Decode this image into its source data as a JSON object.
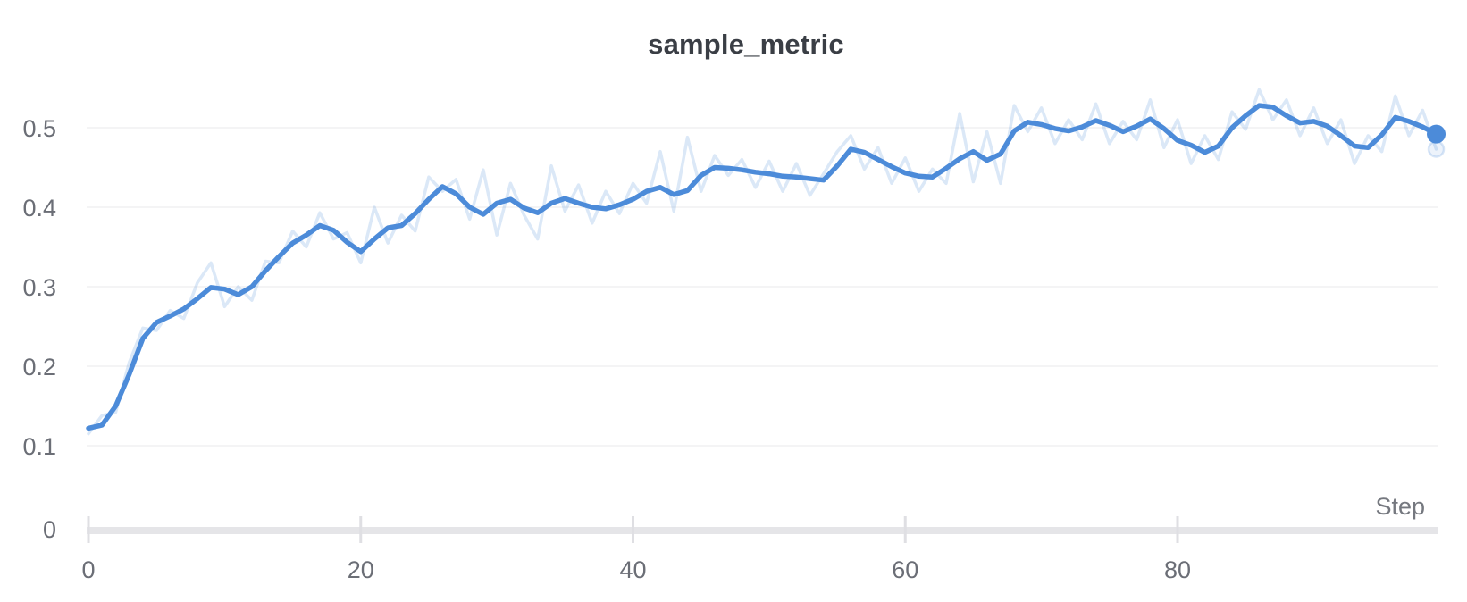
{
  "chart_data": {
    "type": "line",
    "title": "sample_metric",
    "xlabel": "Step",
    "ylabel": "",
    "x_start": 0,
    "x_step": 1,
    "xlim": [
      0,
      99
    ],
    "ylim": [
      0,
      0.55
    ],
    "x_ticks": [
      0,
      20,
      40,
      60,
      80
    ],
    "x_tick_labels": [
      "0",
      "20",
      "40",
      "60",
      "80"
    ],
    "y_ticks": [
      0,
      0.1,
      0.2,
      0.3,
      0.4,
      0.5
    ],
    "y_tick_labels": [
      "0",
      "0.1",
      "0.2",
      "0.3",
      "0.4",
      "0.5"
    ],
    "grid": "horizontal",
    "legend": "none",
    "series": [
      {
        "name": "sample_metric (original)",
        "role": "raw",
        "values": [
          0.115,
          0.138,
          0.142,
          0.205,
          0.248,
          0.245,
          0.27,
          0.26,
          0.305,
          0.33,
          0.275,
          0.3,
          0.283,
          0.332,
          0.33,
          0.37,
          0.35,
          0.393,
          0.36,
          0.368,
          0.33,
          0.4,
          0.355,
          0.39,
          0.37,
          0.438,
          0.42,
          0.435,
          0.385,
          0.447,
          0.365,
          0.43,
          0.39,
          0.36,
          0.452,
          0.395,
          0.428,
          0.38,
          0.42,
          0.392,
          0.43,
          0.405,
          0.47,
          0.395,
          0.488,
          0.42,
          0.465,
          0.44,
          0.46,
          0.425,
          0.458,
          0.42,
          0.455,
          0.415,
          0.442,
          0.47,
          0.49,
          0.448,
          0.475,
          0.43,
          0.462,
          0.42,
          0.448,
          0.43,
          0.518,
          0.432,
          0.495,
          0.43,
          0.528,
          0.495,
          0.525,
          0.48,
          0.51,
          0.485,
          0.53,
          0.48,
          0.508,
          0.485,
          0.535,
          0.475,
          0.51,
          0.455,
          0.49,
          0.46,
          0.52,
          0.498,
          0.548,
          0.51,
          0.535,
          0.49,
          0.525,
          0.48,
          0.51,
          0.455,
          0.49,
          0.47,
          0.54,
          0.49,
          0.522,
          0.473
        ]
      },
      {
        "name": "sample_metric (smoothed)",
        "role": "smoothed",
        "values": [
          0.122,
          0.126,
          0.15,
          0.19,
          0.235,
          0.255,
          0.263,
          0.272,
          0.285,
          0.299,
          0.297,
          0.29,
          0.3,
          0.32,
          0.338,
          0.355,
          0.365,
          0.377,
          0.371,
          0.356,
          0.344,
          0.36,
          0.374,
          0.377,
          0.392,
          0.41,
          0.426,
          0.417,
          0.4,
          0.391,
          0.405,
          0.41,
          0.399,
          0.393,
          0.405,
          0.411,
          0.405,
          0.4,
          0.398,
          0.403,
          0.41,
          0.42,
          0.425,
          0.416,
          0.421,
          0.44,
          0.45,
          0.449,
          0.447,
          0.444,
          0.442,
          0.439,
          0.438,
          0.436,
          0.434,
          0.452,
          0.473,
          0.469,
          0.46,
          0.451,
          0.443,
          0.439,
          0.438,
          0.449,
          0.461,
          0.47,
          0.459,
          0.467,
          0.496,
          0.507,
          0.504,
          0.499,
          0.496,
          0.501,
          0.509,
          0.503,
          0.495,
          0.502,
          0.511,
          0.499,
          0.484,
          0.478,
          0.469,
          0.477,
          0.5,
          0.515,
          0.528,
          0.526,
          0.515,
          0.506,
          0.508,
          0.502,
          0.49,
          0.477,
          0.475,
          0.491,
          0.513,
          0.508,
          0.501,
          0.492
        ]
      }
    ],
    "end_markers": {
      "smoothed_last": 0.492,
      "raw_last": 0.473,
      "last_step": 99
    }
  },
  "style": {
    "line_color": "#4c8bd9",
    "raw_line_color": "#4c8bd9",
    "raw_line_opacity": 0.2,
    "grid_color": "#e9e9eb",
    "axis_bar_color": "#e5e5e8",
    "tick_mark_color": "#dfdfe3",
    "tick_label_color": "#6b6e76",
    "title_color": "#3a3e45",
    "background": "#ffffff"
  }
}
